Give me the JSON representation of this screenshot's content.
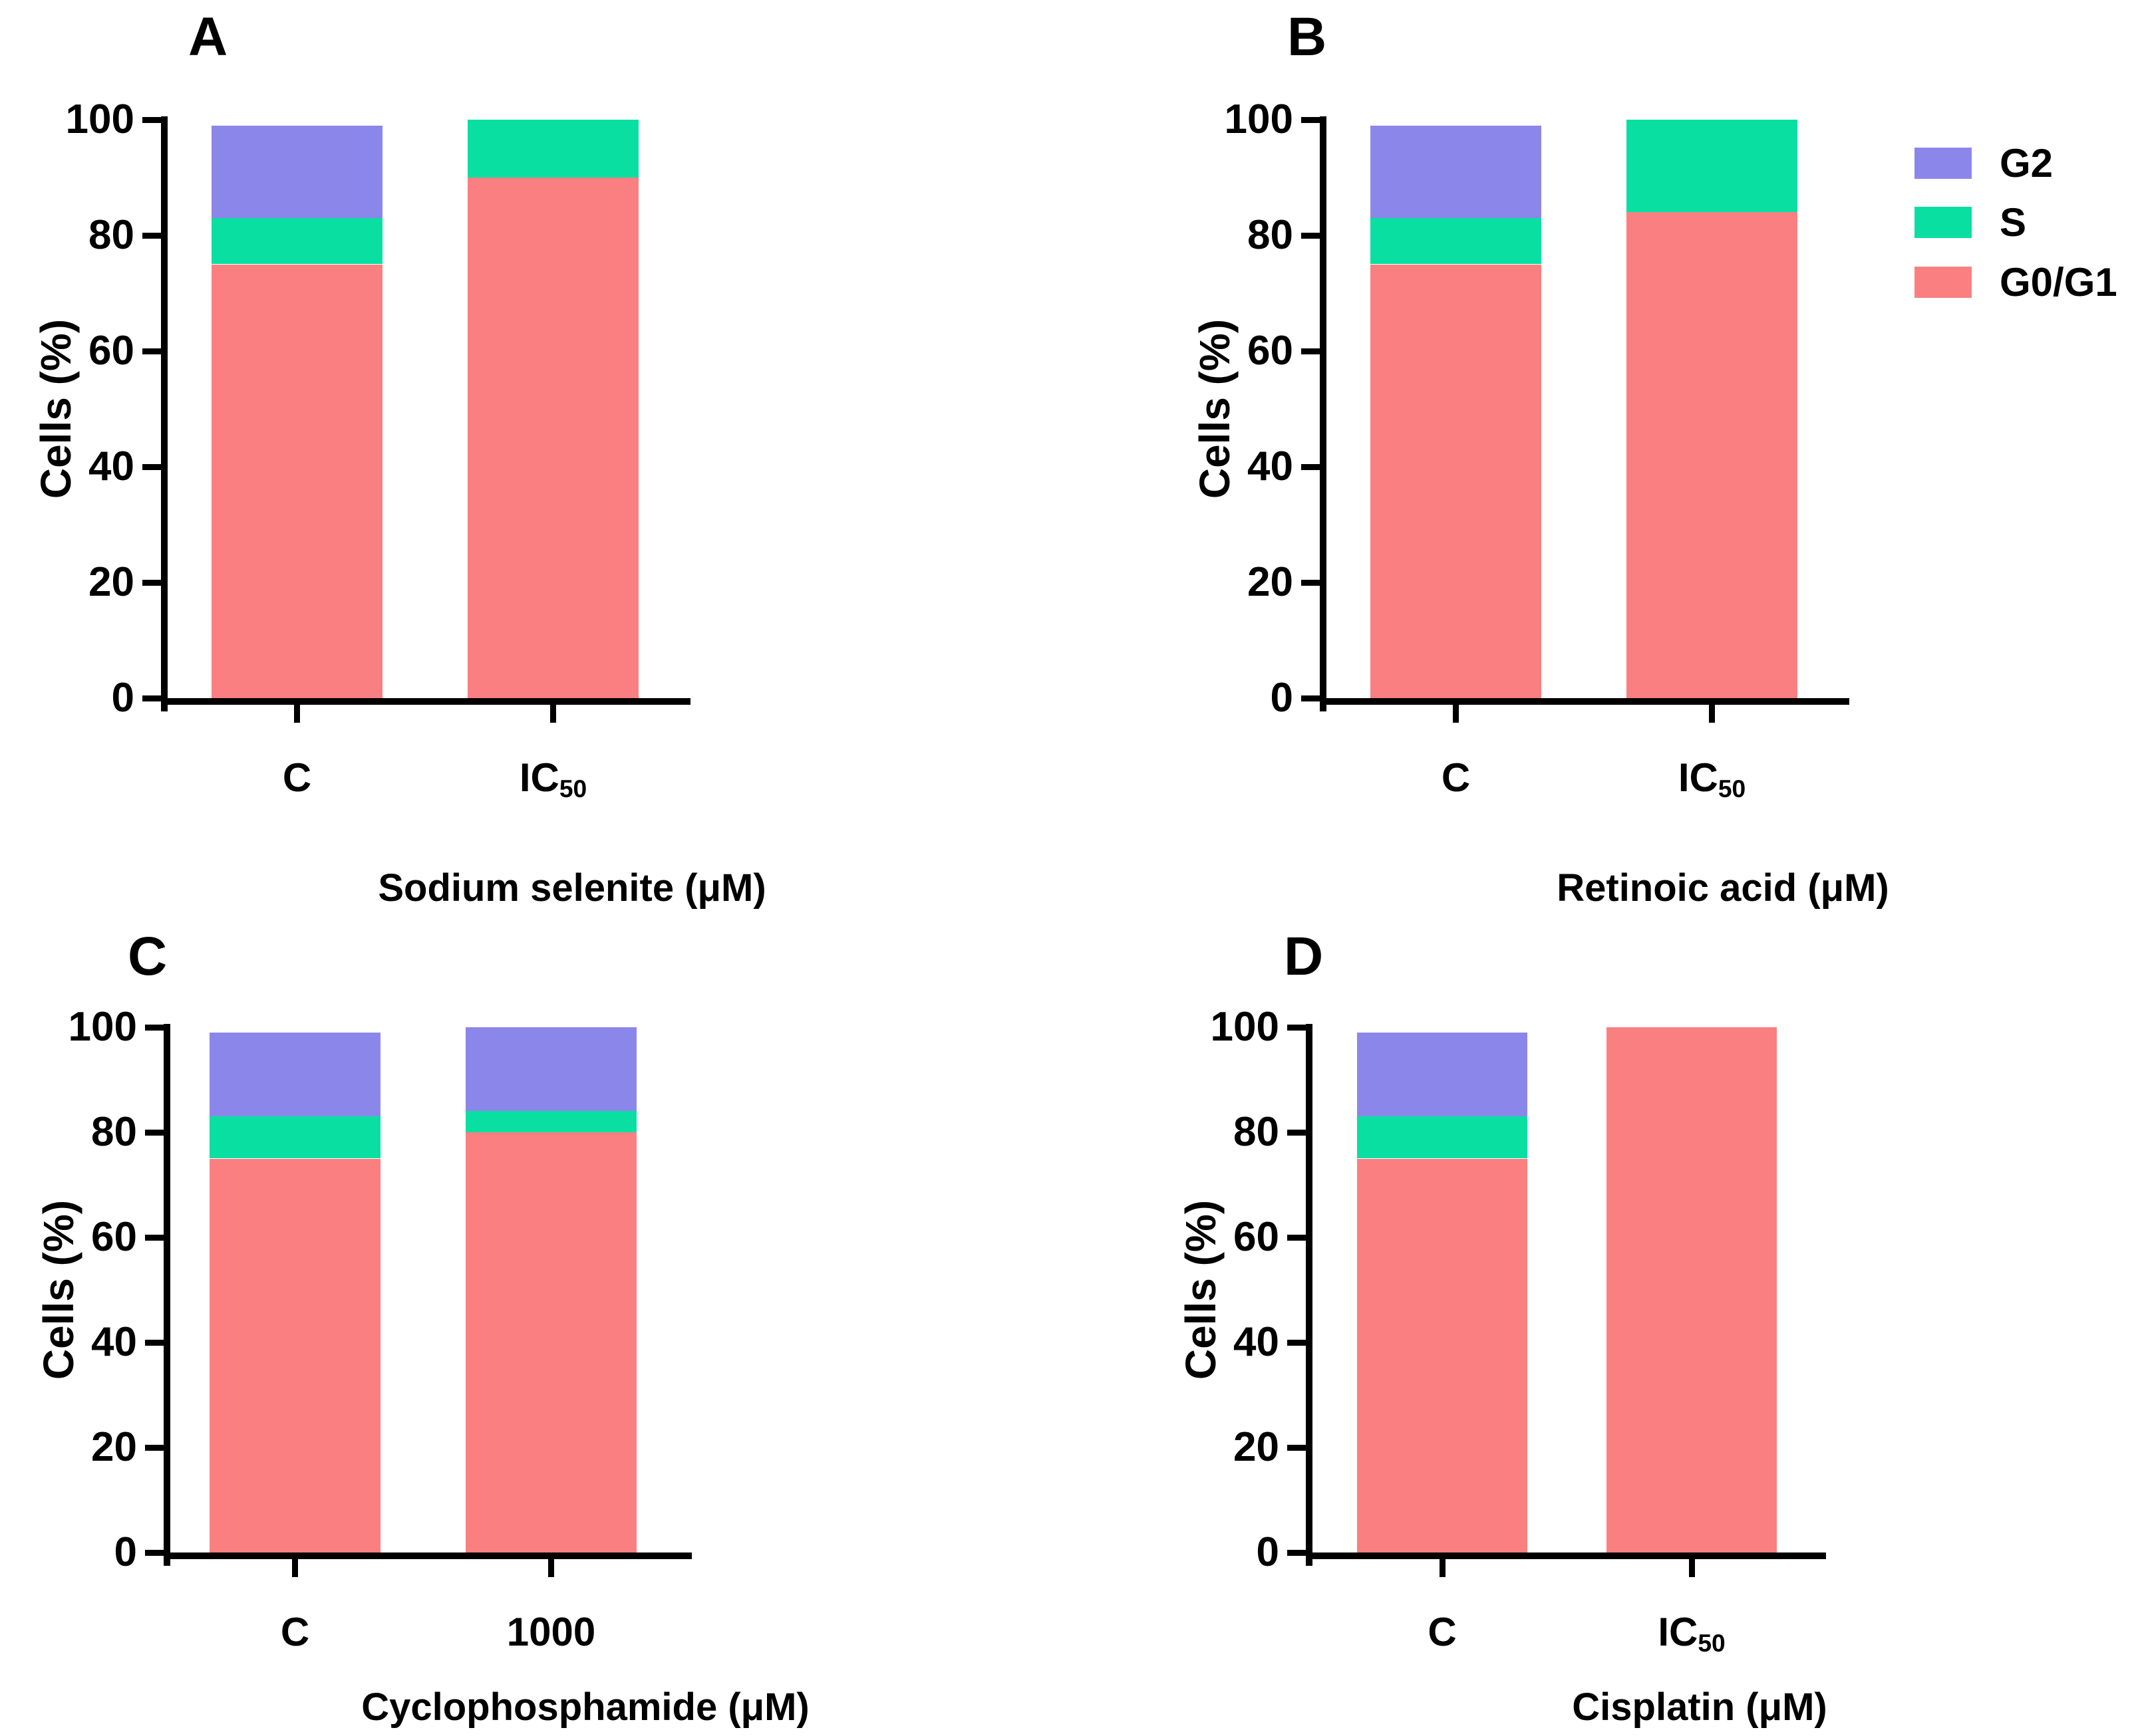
{
  "figure": {
    "background": "#ffffff",
    "text_color": "#000000",
    "axis_color": "#000000"
  },
  "legend": {
    "items": [
      {
        "label": "G2",
        "color": "#8B87EA"
      },
      {
        "label": "S",
        "color": "#0ADFA2"
      },
      {
        "label": "G0/G1",
        "color": "#FA7F80"
      }
    ]
  },
  "chart_data": [
    {
      "panel": "A",
      "type": "bar",
      "stacked": true,
      "xlabel": "Sodium selenite (μM)",
      "ylabel": "Cells (%)",
      "ylim": [
        0,
        100
      ],
      "yticks": [
        0,
        20,
        40,
        60,
        80,
        100
      ],
      "grid": false,
      "categories": [
        {
          "text": "C",
          "sub": ""
        },
        {
          "text": "IC",
          "sub": "50"
        }
      ],
      "series": [
        {
          "name": "G0/G1",
          "color": "#FA7F80",
          "values": [
            75,
            90
          ]
        },
        {
          "name": "S",
          "color": "#0ADFA2",
          "values": [
            8,
            10
          ]
        },
        {
          "name": "G2",
          "color": "#8B87EA",
          "values": [
            16,
            0
          ]
        }
      ]
    },
    {
      "panel": "B",
      "type": "bar",
      "stacked": true,
      "xlabel": "Retinoic acid (μM)",
      "ylabel": "Cells (%)",
      "ylim": [
        0,
        100
      ],
      "yticks": [
        0,
        20,
        40,
        60,
        80,
        100
      ],
      "grid": false,
      "categories": [
        {
          "text": "C",
          "sub": ""
        },
        {
          "text": "IC",
          "sub": "50"
        }
      ],
      "series": [
        {
          "name": "G0/G1",
          "color": "#FA7F80",
          "values": [
            75,
            84
          ]
        },
        {
          "name": "S",
          "color": "#0ADFA2",
          "values": [
            8,
            16
          ]
        },
        {
          "name": "G2",
          "color": "#8B87EA",
          "values": [
            16,
            0
          ]
        }
      ]
    },
    {
      "panel": "C",
      "type": "bar",
      "stacked": true,
      "xlabel": "Cyclophosphamide (μM)",
      "ylabel": "Cells (%)",
      "ylim": [
        0,
        100
      ],
      "yticks": [
        0,
        20,
        40,
        60,
        80,
        100
      ],
      "grid": false,
      "categories": [
        {
          "text": "C",
          "sub": ""
        },
        {
          "text": "1000",
          "sub": ""
        }
      ],
      "series": [
        {
          "name": "G0/G1",
          "color": "#FA7F80",
          "values": [
            75,
            80
          ]
        },
        {
          "name": "S",
          "color": "#0ADFA2",
          "values": [
            8,
            4
          ]
        },
        {
          "name": "G2",
          "color": "#8B87EA",
          "values": [
            16,
            16
          ]
        }
      ]
    },
    {
      "panel": "D",
      "type": "bar",
      "stacked": true,
      "xlabel": "Cisplatin (μM)",
      "ylabel": "Cells (%)",
      "ylim": [
        0,
        100
      ],
      "yticks": [
        0,
        20,
        40,
        60,
        80,
        100
      ],
      "grid": false,
      "categories": [
        {
          "text": "C",
          "sub": ""
        },
        {
          "text": "IC",
          "sub": "50"
        }
      ],
      "series": [
        {
          "name": "G0/G1",
          "color": "#FA7F80",
          "values": [
            75,
            100
          ]
        },
        {
          "name": "S",
          "color": "#0ADFA2",
          "values": [
            8,
            0
          ]
        },
        {
          "name": "G2",
          "color": "#8B87EA",
          "values": [
            16,
            0
          ]
        }
      ]
    }
  ]
}
